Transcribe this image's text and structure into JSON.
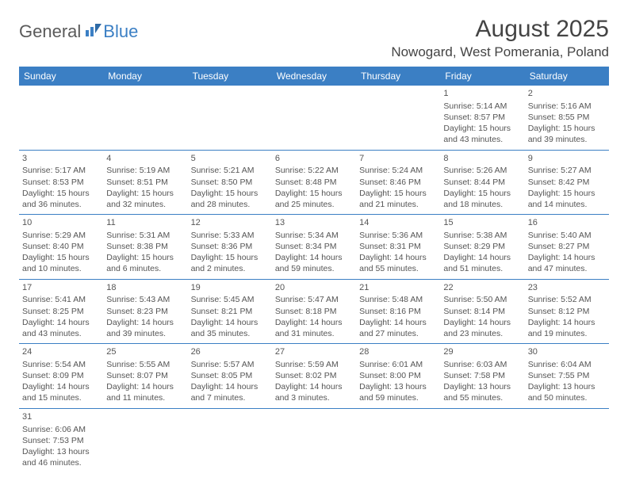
{
  "logo": {
    "textA": "General",
    "textB": "Blue"
  },
  "title": "August 2025",
  "location": "Nowogard, West Pomerania, Poland",
  "colors": {
    "headerBlue": "#3b7fc4",
    "text": "#444444",
    "cellText": "#555555",
    "background": "#ffffff"
  },
  "dayNames": [
    "Sunday",
    "Monday",
    "Tuesday",
    "Wednesday",
    "Thursday",
    "Friday",
    "Saturday"
  ],
  "weeks": [
    [
      null,
      null,
      null,
      null,
      null,
      {
        "n": "1",
        "sr": "Sunrise: 5:14 AM",
        "ss": "Sunset: 8:57 PM",
        "d1": "Daylight: 15 hours",
        "d2": "and 43 minutes."
      },
      {
        "n": "2",
        "sr": "Sunrise: 5:16 AM",
        "ss": "Sunset: 8:55 PM",
        "d1": "Daylight: 15 hours",
        "d2": "and 39 minutes."
      }
    ],
    [
      {
        "n": "3",
        "sr": "Sunrise: 5:17 AM",
        "ss": "Sunset: 8:53 PM",
        "d1": "Daylight: 15 hours",
        "d2": "and 36 minutes."
      },
      {
        "n": "4",
        "sr": "Sunrise: 5:19 AM",
        "ss": "Sunset: 8:51 PM",
        "d1": "Daylight: 15 hours",
        "d2": "and 32 minutes."
      },
      {
        "n": "5",
        "sr": "Sunrise: 5:21 AM",
        "ss": "Sunset: 8:50 PM",
        "d1": "Daylight: 15 hours",
        "d2": "and 28 minutes."
      },
      {
        "n": "6",
        "sr": "Sunrise: 5:22 AM",
        "ss": "Sunset: 8:48 PM",
        "d1": "Daylight: 15 hours",
        "d2": "and 25 minutes."
      },
      {
        "n": "7",
        "sr": "Sunrise: 5:24 AM",
        "ss": "Sunset: 8:46 PM",
        "d1": "Daylight: 15 hours",
        "d2": "and 21 minutes."
      },
      {
        "n": "8",
        "sr": "Sunrise: 5:26 AM",
        "ss": "Sunset: 8:44 PM",
        "d1": "Daylight: 15 hours",
        "d2": "and 18 minutes."
      },
      {
        "n": "9",
        "sr": "Sunrise: 5:27 AM",
        "ss": "Sunset: 8:42 PM",
        "d1": "Daylight: 15 hours",
        "d2": "and 14 minutes."
      }
    ],
    [
      {
        "n": "10",
        "sr": "Sunrise: 5:29 AM",
        "ss": "Sunset: 8:40 PM",
        "d1": "Daylight: 15 hours",
        "d2": "and 10 minutes."
      },
      {
        "n": "11",
        "sr": "Sunrise: 5:31 AM",
        "ss": "Sunset: 8:38 PM",
        "d1": "Daylight: 15 hours",
        "d2": "and 6 minutes."
      },
      {
        "n": "12",
        "sr": "Sunrise: 5:33 AM",
        "ss": "Sunset: 8:36 PM",
        "d1": "Daylight: 15 hours",
        "d2": "and 2 minutes."
      },
      {
        "n": "13",
        "sr": "Sunrise: 5:34 AM",
        "ss": "Sunset: 8:34 PM",
        "d1": "Daylight: 14 hours",
        "d2": "and 59 minutes."
      },
      {
        "n": "14",
        "sr": "Sunrise: 5:36 AM",
        "ss": "Sunset: 8:31 PM",
        "d1": "Daylight: 14 hours",
        "d2": "and 55 minutes."
      },
      {
        "n": "15",
        "sr": "Sunrise: 5:38 AM",
        "ss": "Sunset: 8:29 PM",
        "d1": "Daylight: 14 hours",
        "d2": "and 51 minutes."
      },
      {
        "n": "16",
        "sr": "Sunrise: 5:40 AM",
        "ss": "Sunset: 8:27 PM",
        "d1": "Daylight: 14 hours",
        "d2": "and 47 minutes."
      }
    ],
    [
      {
        "n": "17",
        "sr": "Sunrise: 5:41 AM",
        "ss": "Sunset: 8:25 PM",
        "d1": "Daylight: 14 hours",
        "d2": "and 43 minutes."
      },
      {
        "n": "18",
        "sr": "Sunrise: 5:43 AM",
        "ss": "Sunset: 8:23 PM",
        "d1": "Daylight: 14 hours",
        "d2": "and 39 minutes."
      },
      {
        "n": "19",
        "sr": "Sunrise: 5:45 AM",
        "ss": "Sunset: 8:21 PM",
        "d1": "Daylight: 14 hours",
        "d2": "and 35 minutes."
      },
      {
        "n": "20",
        "sr": "Sunrise: 5:47 AM",
        "ss": "Sunset: 8:18 PM",
        "d1": "Daylight: 14 hours",
        "d2": "and 31 minutes."
      },
      {
        "n": "21",
        "sr": "Sunrise: 5:48 AM",
        "ss": "Sunset: 8:16 PM",
        "d1": "Daylight: 14 hours",
        "d2": "and 27 minutes."
      },
      {
        "n": "22",
        "sr": "Sunrise: 5:50 AM",
        "ss": "Sunset: 8:14 PM",
        "d1": "Daylight: 14 hours",
        "d2": "and 23 minutes."
      },
      {
        "n": "23",
        "sr": "Sunrise: 5:52 AM",
        "ss": "Sunset: 8:12 PM",
        "d1": "Daylight: 14 hours",
        "d2": "and 19 minutes."
      }
    ],
    [
      {
        "n": "24",
        "sr": "Sunrise: 5:54 AM",
        "ss": "Sunset: 8:09 PM",
        "d1": "Daylight: 14 hours",
        "d2": "and 15 minutes."
      },
      {
        "n": "25",
        "sr": "Sunrise: 5:55 AM",
        "ss": "Sunset: 8:07 PM",
        "d1": "Daylight: 14 hours",
        "d2": "and 11 minutes."
      },
      {
        "n": "26",
        "sr": "Sunrise: 5:57 AM",
        "ss": "Sunset: 8:05 PM",
        "d1": "Daylight: 14 hours",
        "d2": "and 7 minutes."
      },
      {
        "n": "27",
        "sr": "Sunrise: 5:59 AM",
        "ss": "Sunset: 8:02 PM",
        "d1": "Daylight: 14 hours",
        "d2": "and 3 minutes."
      },
      {
        "n": "28",
        "sr": "Sunrise: 6:01 AM",
        "ss": "Sunset: 8:00 PM",
        "d1": "Daylight: 13 hours",
        "d2": "and 59 minutes."
      },
      {
        "n": "29",
        "sr": "Sunrise: 6:03 AM",
        "ss": "Sunset: 7:58 PM",
        "d1": "Daylight: 13 hours",
        "d2": "and 55 minutes."
      },
      {
        "n": "30",
        "sr": "Sunrise: 6:04 AM",
        "ss": "Sunset: 7:55 PM",
        "d1": "Daylight: 13 hours",
        "d2": "and 50 minutes."
      }
    ],
    [
      {
        "n": "31",
        "sr": "Sunrise: 6:06 AM",
        "ss": "Sunset: 7:53 PM",
        "d1": "Daylight: 13 hours",
        "d2": "and 46 minutes."
      },
      null,
      null,
      null,
      null,
      null,
      null
    ]
  ]
}
